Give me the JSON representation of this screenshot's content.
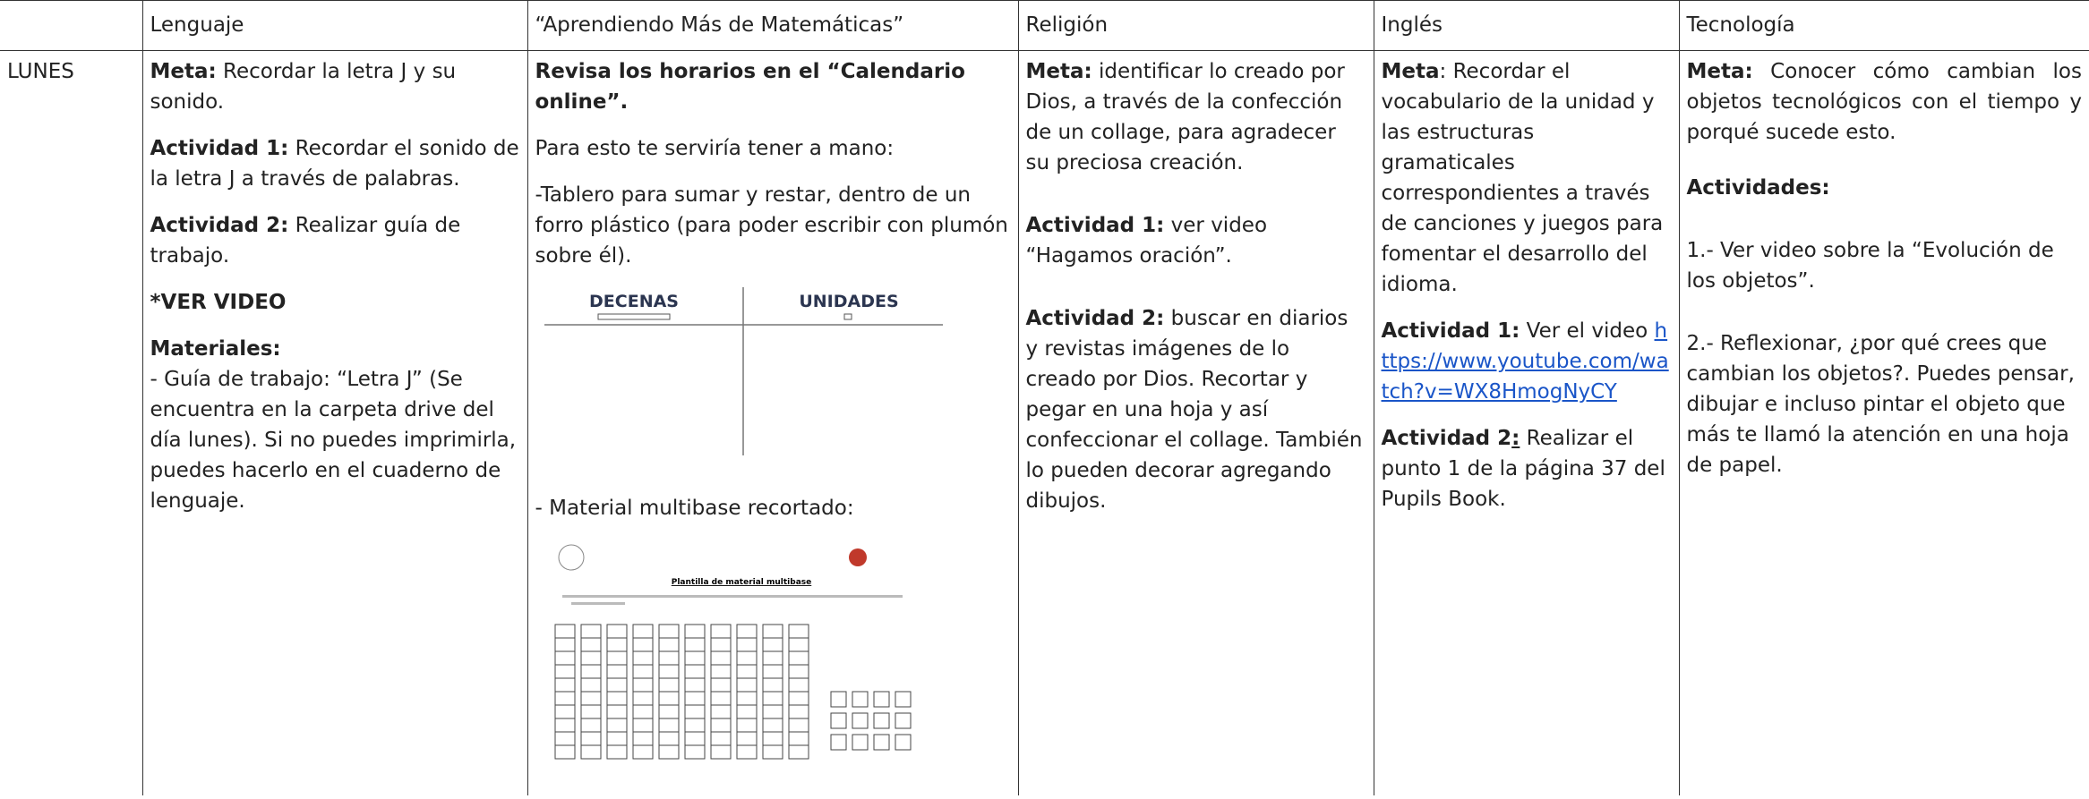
{
  "header": [
    "Lenguaje",
    "“Aprendiendo Más de Matemáticas”",
    "Religión",
    "Inglés",
    "Tecnología"
  ],
  "day": "LUNES",
  "cells": [
    [
      [
        "Meta:",
        " Recordar la letra J y su sonido."
      ],
      [
        "Actividad 1:",
        " Recordar el sonido de la letra J a través de palabras."
      ],
      [
        "Actividad 2:",
        " Realizar guía de trabajo."
      ],
      [
        "*VER VIDEO"
      ],
      [
        "Materiales:",
        "- Guía de trabajo:  “Letra J” (Se encuentra en la carpeta drive del día lunes). Si no puedes imprimirla, puedes hacerlo en el cuaderno de lenguaje."
      ]
    ],
    [
      [
        "Revisa los horarios en el “Calendario online”."
      ],
      [
        "Para esto te serviría tener a mano:"
      ],
      [
        "-Tablero para sumar y restar, dentro de un forro plástico (para poder escribir con plumón sobre él)."
      ],
      [
        "- Material multibase recortado:"
      ]
    ],
    [
      [
        "Meta:",
        " identificar lo creado por Dios, a través de la confección de un collage, para agradecer su preciosa creación."
      ],
      [
        "Actividad 1:",
        " ver video “Hagamos oración”."
      ],
      [
        "Actividad 2:",
        " buscar en diarios y revistas imágenes de lo creado por Dios. Recortar y pegar en una hoja y así confeccionar el collage. También lo pueden decorar agregando dibujos."
      ]
    ],
    [
      [
        "Meta",
        ": Recordar el vocabulario de la unidad y las estructuras gramaticales correspondientes a través de canciones y juegos para fomentar el desarrollo del idioma."
      ],
      [
        "Actividad 1:",
        " Ver el video ",
        "https://www.youtube.com/watch?v=WX8HmogNyCY"
      ],
      [
        "Actividad 2",
        ":",
        " Realizar el punto 1 de la página 37 del Pupils Book."
      ]
    ],
    [
      [
        "Meta:",
        "  Conocer cómo cambian los objetos tecnológicos con el tiempo y porqué sucede esto."
      ],
      [
        "Actividades:"
      ],
      [
        "1.- Ver video sobre la “Evolución de los objetos”."
      ],
      [
        "2.- Reflexionar, ¿por qué crees que cambian los objetos?. Puedes pensar, dibujar e incluso pintar el objeto que más te llamó la atención en una hoja de papel."
      ]
    ]
  ],
  "tablero": {
    "left": "DECENAS",
    "right": "UNIDADES"
  },
  "plantilla": {
    "title": "Plantilla de material multibase"
  }
}
